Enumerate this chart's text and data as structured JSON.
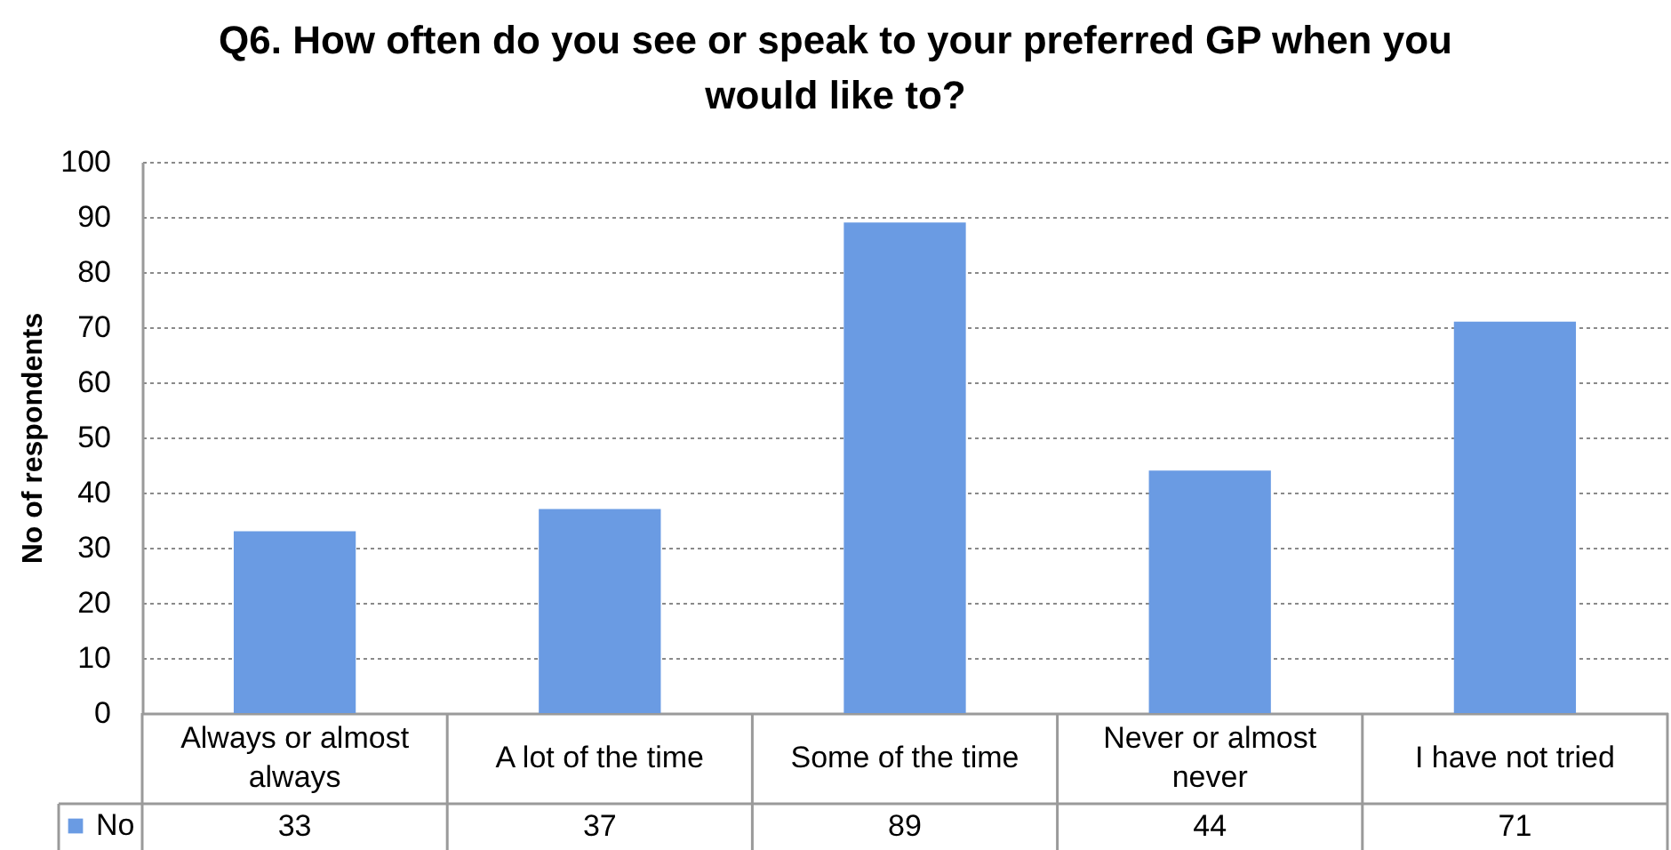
{
  "chart_data": {
    "type": "bar",
    "title": "Q6. How often do you see or speak to your preferred GP when you would like to?",
    "ylabel": "No of respondents",
    "categories": [
      "Always or almost always",
      "A lot of the time",
      "Some of the time",
      "Never or almost never",
      "I have not tried"
    ],
    "series": [
      {
        "name": "No",
        "color": "#6a9be3",
        "values": [
          33,
          37,
          89,
          44,
          71
        ]
      }
    ],
    "ylim": [
      0,
      100
    ],
    "yticks": [
      0,
      10,
      20,
      30,
      40,
      50,
      60,
      70,
      80,
      90,
      100
    ],
    "grid": "y",
    "legend": "bottom left",
    "data_labels": true
  }
}
